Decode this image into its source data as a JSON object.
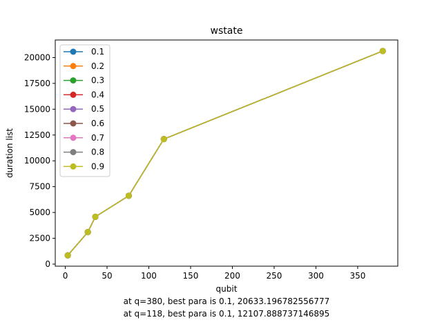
{
  "chart_data": {
    "type": "line",
    "title": "wstate",
    "xlabel": "qubit",
    "ylabel": "duration list",
    "xlim": [
      -12,
      398
    ],
    "ylim": [
      -200,
      21700
    ],
    "xticks": [
      0,
      50,
      100,
      150,
      200,
      250,
      300,
      350
    ],
    "yticks": [
      0,
      2500,
      5000,
      7500,
      10000,
      12500,
      15000,
      17500,
      20000
    ],
    "x": [
      3,
      27,
      36,
      76,
      118,
      380
    ],
    "series": [
      {
        "name": "0.1",
        "color": "#1f77b4",
        "values": [
          850,
          3100,
          4580,
          6620,
          12108,
          20633
        ]
      },
      {
        "name": "0.2",
        "color": "#ff7f0e",
        "values": [
          850,
          3100,
          4580,
          6620,
          12108,
          20633
        ]
      },
      {
        "name": "0.3",
        "color": "#2ca02c",
        "values": [
          850,
          3100,
          4580,
          6620,
          12108,
          20633
        ]
      },
      {
        "name": "0.4",
        "color": "#d62728",
        "values": [
          850,
          3100,
          4580,
          6620,
          12108,
          20633
        ]
      },
      {
        "name": "0.5",
        "color": "#9467bd",
        "values": [
          850,
          3100,
          4580,
          6620,
          12108,
          20633
        ]
      },
      {
        "name": "0.6",
        "color": "#8c564b",
        "values": [
          850,
          3100,
          4580,
          6620,
          12108,
          20633
        ]
      },
      {
        "name": "0.7",
        "color": "#e377c2",
        "values": [
          850,
          3100,
          4580,
          6620,
          12108,
          20633
        ]
      },
      {
        "name": "0.8",
        "color": "#7f7f7f",
        "values": [
          850,
          3100,
          4580,
          6620,
          12108,
          20633
        ]
      },
      {
        "name": "0.9",
        "color": "#bcbd22",
        "values": [
          850,
          3100,
          4580,
          6620,
          12108,
          20633
        ]
      }
    ],
    "legend": "top-left",
    "grid": false,
    "annotations": [
      "at q=380, best para is 0.1, 20633.196782556777",
      "at q=118, best para is 0.1, 12107.888737146895"
    ]
  }
}
